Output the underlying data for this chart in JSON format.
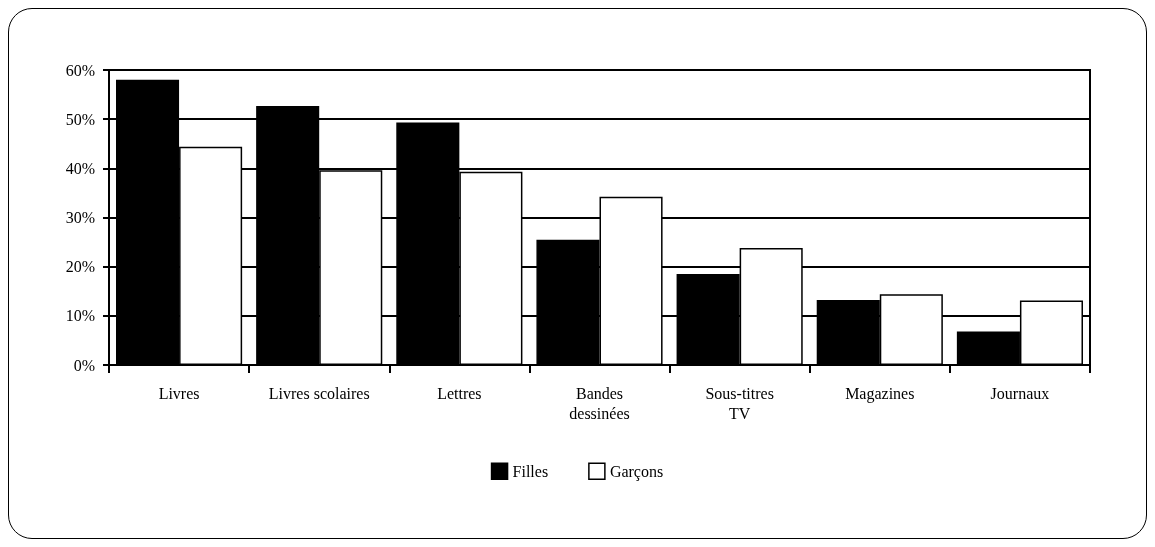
{
  "chart_data": {
    "type": "bar",
    "categories": [
      "Livres",
      "Livres scolaires",
      "Lettres",
      "Bandes\ndessinées",
      "Sous-titres\nTV",
      "Magazines",
      "Journaux"
    ],
    "series": [
      {
        "name": "Filles",
        "color": "#000000",
        "values": [
          58.0,
          52.7,
          49.3,
          25.5,
          18.5,
          13.2,
          6.8
        ]
      },
      {
        "name": "Garçons",
        "color": "#ffffff",
        "values": [
          44.4,
          39.6,
          39.3,
          34.2,
          23.8,
          14.4,
          13.1
        ]
      }
    ],
    "ylim": [
      0,
      60
    ],
    "yticks": [
      {
        "value": 0,
        "label": "0%"
      },
      {
        "value": 10,
        "label": "10%"
      },
      {
        "value": 20,
        "label": "20%"
      },
      {
        "value": 30,
        "label": "30%"
      },
      {
        "value": 40,
        "label": "40%"
      },
      {
        "value": 50,
        "label": "50%"
      },
      {
        "value": 60,
        "label": "60%"
      }
    ],
    "grid": "y",
    "legend": "bottom"
  }
}
